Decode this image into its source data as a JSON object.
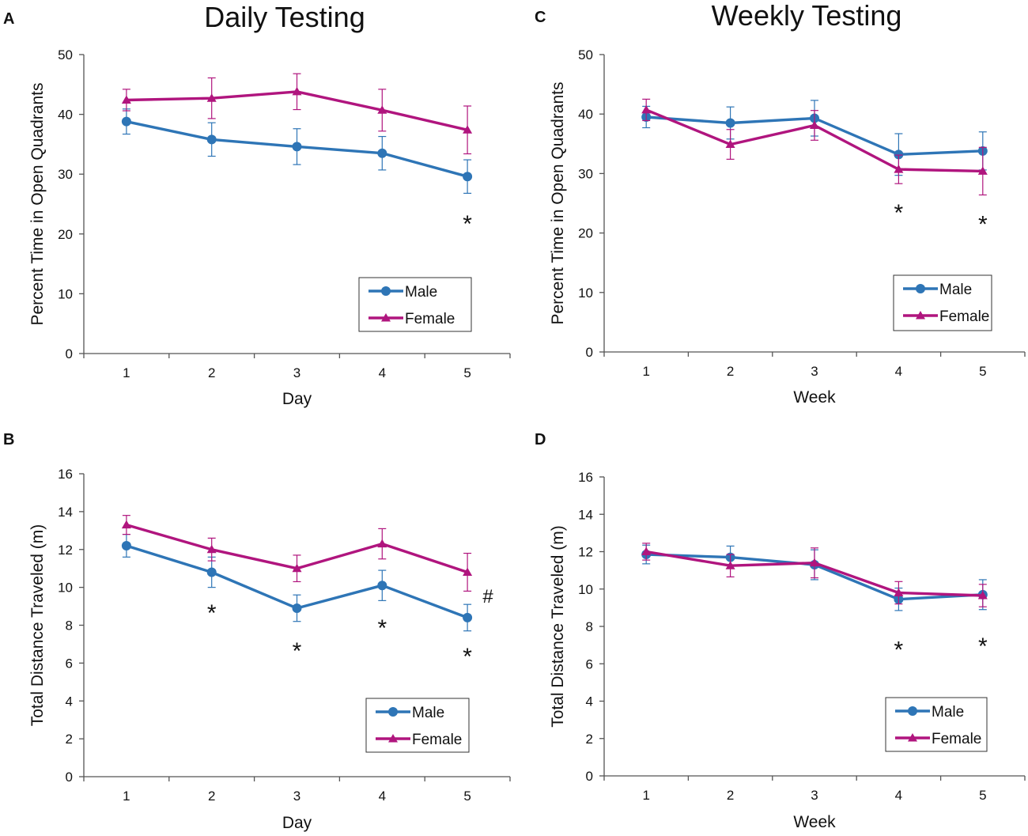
{
  "figure": {
    "section_titles": [
      "Daily Testing",
      "Weekly Testing"
    ],
    "colors": {
      "male": "#2e75b6",
      "female": "#b0157e",
      "axis": "#555555"
    }
  },
  "chart_data": [
    {
      "panel": "A",
      "type": "line",
      "xlabel": "Day",
      "ylabel": "Percent Time in Open Quadrants",
      "categories": [
        "1",
        "2",
        "3",
        "4",
        "5"
      ],
      "ylim": [
        0,
        50
      ],
      "yticks": [
        0,
        10,
        20,
        30,
        40,
        50
      ],
      "series": [
        {
          "name": "Male",
          "marker": "circle",
          "values": [
            38.8,
            35.8,
            34.6,
            33.5,
            29.6
          ],
          "errors": [
            2.1,
            2.8,
            3.0,
            2.8,
            2.8
          ]
        },
        {
          "name": "Female",
          "marker": "triangle",
          "values": [
            42.4,
            42.7,
            43.8,
            40.7,
            37.4
          ],
          "errors": [
            1.8,
            3.4,
            3.0,
            3.5,
            4.0
          ]
        }
      ],
      "legend": {
        "position": "bottom-right",
        "entries": [
          "Male",
          "Female"
        ]
      },
      "annotations": [
        {
          "text": "*",
          "category": "5",
          "y": 22.5
        }
      ]
    },
    {
      "panel": "B",
      "type": "line",
      "xlabel": "Day",
      "ylabel": "Total Distance Traveled (m)",
      "categories": [
        "1",
        "2",
        "3",
        "4",
        "5"
      ],
      "ylim": [
        0,
        16
      ],
      "yticks": [
        0,
        2,
        4,
        6,
        8,
        10,
        12,
        14,
        16
      ],
      "series": [
        {
          "name": "Male",
          "marker": "circle",
          "values": [
            12.2,
            10.8,
            8.9,
            10.1,
            8.4
          ],
          "errors": [
            0.6,
            0.8,
            0.7,
            0.8,
            0.7
          ]
        },
        {
          "name": "Female",
          "marker": "triangle",
          "values": [
            13.3,
            12.0,
            11.0,
            12.3,
            10.8
          ],
          "errors": [
            0.5,
            0.6,
            0.7,
            0.8,
            1.0
          ]
        }
      ],
      "legend": {
        "position": "bottom-right",
        "entries": [
          "Male",
          "Female"
        ]
      },
      "annotations": [
        {
          "text": "*",
          "category": "2",
          "y": 8.9
        },
        {
          "text": "*",
          "category": "3",
          "y": 6.9
        },
        {
          "text": "*",
          "category": "4",
          "y": 8.1
        },
        {
          "text": "*",
          "category": "5",
          "y": 6.6
        },
        {
          "text": "#",
          "category": "5",
          "y": 9.6,
          "offset": "right"
        }
      ]
    },
    {
      "panel": "C",
      "type": "line",
      "xlabel": "Week",
      "ylabel": "Percent Time in Open Quadrants",
      "categories": [
        "1",
        "2",
        "3",
        "4",
        "5"
      ],
      "ylim": [
        0,
        50
      ],
      "yticks": [
        0,
        10,
        20,
        30,
        40,
        50
      ],
      "series": [
        {
          "name": "Male",
          "marker": "circle",
          "values": [
            39.5,
            38.5,
            39.3,
            33.2,
            33.8
          ],
          "errors": [
            1.8,
            2.7,
            3.0,
            3.5,
            3.2
          ]
        },
        {
          "name": "Female",
          "marker": "triangle",
          "values": [
            40.7,
            34.9,
            38.1,
            30.7,
            30.4
          ],
          "errors": [
            1.8,
            2.5,
            2.5,
            2.4,
            4.0
          ]
        }
      ],
      "legend": {
        "position": "bottom-right",
        "entries": [
          "Male",
          "Female"
        ]
      },
      "annotations": [
        {
          "text": "*",
          "category": "4",
          "y": 24.2
        },
        {
          "text": "*",
          "category": "5",
          "y": 22.3
        }
      ]
    },
    {
      "panel": "D",
      "type": "line",
      "xlabel": "Week",
      "ylabel": "Total Distance Traveled (m)",
      "categories": [
        "1",
        "2",
        "3",
        "4",
        "5"
      ],
      "ylim": [
        0,
        16
      ],
      "yticks": [
        0,
        2,
        4,
        6,
        8,
        10,
        12,
        14,
        16
      ],
      "series": [
        {
          "name": "Male",
          "marker": "circle",
          "values": [
            11.85,
            11.7,
            11.3,
            9.45,
            9.7
          ],
          "errors": [
            0.5,
            0.6,
            0.8,
            0.6,
            0.8
          ]
        },
        {
          "name": "Female",
          "marker": "triangle",
          "values": [
            12.0,
            11.25,
            11.4,
            9.8,
            9.65
          ],
          "errors": [
            0.45,
            0.6,
            0.8,
            0.6,
            0.6
          ]
        }
      ],
      "legend": {
        "position": "bottom-right",
        "entries": [
          "Male",
          "Female"
        ]
      },
      "annotations": [
        {
          "text": "*",
          "category": "4",
          "y": 7.0
        },
        {
          "text": "*",
          "category": "5",
          "y": 7.2
        }
      ]
    }
  ]
}
